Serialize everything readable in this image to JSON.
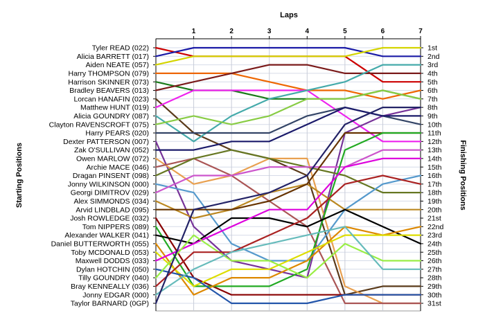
{
  "chart_data": {
    "type": "line",
    "title": "Laps",
    "ylabel_left": "Starting Positions",
    "ylabel_right": "Finishing Positions",
    "x": [
      0,
      1,
      2,
      3,
      4,
      5,
      6,
      7
    ],
    "xticks": [
      "1",
      "2",
      "3",
      "4",
      "5",
      "6",
      "7"
    ],
    "grid": true,
    "ranks": [
      "1st",
      "2nd",
      "3rd",
      "4th",
      "5th",
      "6th",
      "7th",
      "8th",
      "9th",
      "10th",
      "11th",
      "12th",
      "13th",
      "14th",
      "15th",
      "16th",
      "17th",
      "18th",
      "19th",
      "20th",
      "21st",
      "22nd",
      "23rd",
      "24th",
      "25th",
      "26th",
      "27th",
      "28th",
      "29th",
      "30th",
      "31st"
    ],
    "series": [
      {
        "name": "Tyler READ (022)",
        "color": "#cc0000",
        "values": [
          1,
          2,
          2,
          2,
          2,
          2,
          5,
          5
        ]
      },
      {
        "name": "Alicia BARRETT (017)",
        "color": "#1a1aa6",
        "values": [
          2,
          1,
          1,
          1,
          1,
          1,
          2,
          2
        ]
      },
      {
        "name": "Aiden NEATE (057)",
        "color": "#d4d400",
        "values": [
          3,
          2,
          2,
          2,
          2,
          2,
          1,
          1
        ]
      },
      {
        "name": "Harry THOMPSON (079)",
        "color": "#ee6600",
        "values": [
          4,
          4,
          4,
          5,
          6,
          6,
          7,
          6
        ]
      },
      {
        "name": "Harrison SKINNER (073)",
        "color": "#1a7a1a",
        "values": [
          5,
          6,
          6,
          7,
          7,
          7,
          6,
          7
        ]
      },
      {
        "name": "Bradley BEAVERS (013)",
        "color": "#7a1a1a",
        "values": [
          6,
          5,
          4,
          3,
          3,
          4,
          4,
          4
        ]
      },
      {
        "name": "Lorcan HANAFIN (023)",
        "color": "#5a3a1a",
        "values": [
          7,
          11,
          13,
          14,
          16,
          30,
          29,
          29
        ]
      },
      {
        "name": "Matthew HUNT (019)",
        "color": "#ee22ee",
        "values": [
          8,
          6,
          6,
          6,
          6,
          9,
          12,
          12
        ]
      },
      {
        "name": "Alicia GOUNDRY (087)",
        "color": "#44aaaa",
        "values": [
          9,
          12,
          9,
          7,
          6,
          5,
          3,
          3
        ]
      },
      {
        "name": "Clayton RAVENSCROFT (075)",
        "color": "#88cc44",
        "values": [
          10,
          9,
          10,
          9,
          7,
          7,
          6,
          7
        ]
      },
      {
        "name": "Harry PEARS (020)",
        "color": "#334466",
        "values": [
          11,
          11,
          11,
          11,
          9,
          8,
          9,
          10
        ]
      },
      {
        "name": "Dexter PATTERSON (007)",
        "color": "#773399",
        "values": [
          12,
          22,
          26,
          27,
          28,
          11,
          9,
          8
        ]
      },
      {
        "name": "Zak O'SULLIVAN (052)",
        "color": "#1a1a6a",
        "values": [
          13,
          13,
          12,
          12,
          10,
          8,
          9,
          9
        ]
      },
      {
        "name": "Owen MARLOW (072)",
        "color": "#e8a050",
        "values": [
          14,
          17,
          16,
          14,
          14,
          29,
          31,
          31
        ]
      },
      {
        "name": "Archie MACE (046)",
        "color": "#aa5555",
        "values": [
          15,
          14,
          16,
          19,
          22,
          31,
          31,
          31
        ]
      },
      {
        "name": "Dragan PINSENT (098)",
        "color": "#667722",
        "values": [
          16,
          14,
          13,
          14,
          15,
          16,
          18,
          18
        ]
      },
      {
        "name": "Jonny WILKINSON (000)",
        "color": "#5599cc",
        "values": [
          17,
          18,
          24,
          26,
          26,
          20,
          17,
          16
        ]
      },
      {
        "name": "Georgi DIMITROV (029)",
        "color": "#cc55cc",
        "values": [
          18,
          16,
          16,
          15,
          15,
          15,
          13,
          13
        ]
      },
      {
        "name": "Alex SIMMONDS (034)",
        "color": "#bb8822",
        "values": [
          19,
          21,
          20,
          18,
          17,
          20,
          20,
          20
        ]
      },
      {
        "name": "Arvid LINDBLAD (095)",
        "color": "#663300",
        "values": [
          20,
          20,
          20,
          19,
          17,
          11,
          11,
          11
        ]
      },
      {
        "name": "Josh ROWLEDGE (032)",
        "color": "#880000",
        "values": [
          21,
          28,
          30,
          30,
          30,
          30,
          30,
          30
        ]
      },
      {
        "name": "Tom NIPPERS (089)",
        "color": "#22aa22",
        "values": [
          22,
          29,
          29,
          29,
          27,
          13,
          11,
          11
        ]
      },
      {
        "name": "Alexander WALKER (041)",
        "color": "#000000",
        "values": [
          23,
          24,
          21,
          21,
          22,
          20,
          22,
          24
        ]
      },
      {
        "name": "Daniel BUTTERWORTH (055)",
        "color": "#dd8800",
        "values": [
          24,
          30,
          28,
          28,
          26,
          22,
          23,
          22
        ]
      },
      {
        "name": "Toby MCDONALD (053)",
        "color": "#dddd00",
        "values": [
          25,
          29,
          27,
          27,
          25,
          23,
          23,
          23
        ]
      },
      {
        "name": "Maxwell DODDS (033)",
        "color": "#dd00dd",
        "values": [
          26,
          24,
          22,
          20,
          20,
          15,
          14,
          14
        ]
      },
      {
        "name": "Dylan HOTCHIN (050)",
        "color": "#2255aa",
        "values": [
          27,
          28,
          31,
          31,
          31,
          30,
          30,
          30
        ]
      },
      {
        "name": "Tilly GOUNDRY (040)",
        "color": "#99ee44",
        "values": [
          28,
          23,
          26,
          26,
          28,
          24,
          26,
          26
        ]
      },
      {
        "name": "Bray KENNEALLY (036)",
        "color": "#aa2222",
        "values": [
          29,
          25,
          25,
          23,
          21,
          17,
          16,
          17
        ]
      },
      {
        "name": "Jonny EDGAR (000)",
        "color": "#66bbbb",
        "values": [
          30,
          27,
          25,
          24,
          23,
          22,
          27,
          27
        ]
      },
      {
        "name": "Taylor BARNARD (0GP)",
        "color": "#222266",
        "values": [
          31,
          20,
          19,
          18,
          16,
          10,
          8,
          8
        ]
      }
    ]
  }
}
